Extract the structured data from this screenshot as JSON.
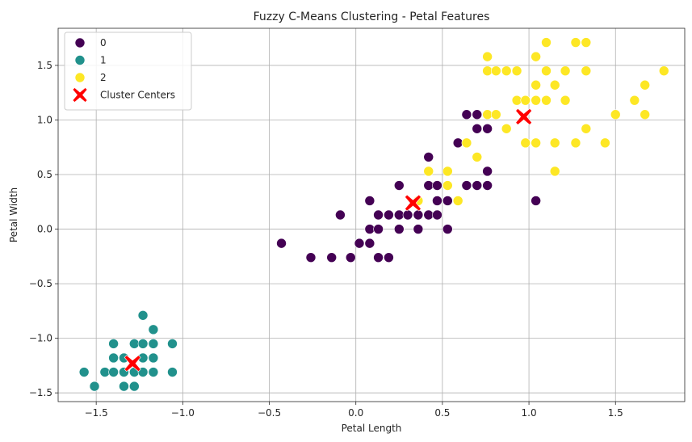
{
  "chart_data": {
    "type": "scatter",
    "title": "Fuzzy C-Means Clustering - Petal Features",
    "xlabel": "Petal Length",
    "ylabel": "Petal Width",
    "xlim": [
      -1.72,
      1.9
    ],
    "ylim": [
      -1.58,
      1.84
    ],
    "xticks": [
      -1.5,
      -1.0,
      -0.5,
      0.0,
      0.5,
      1.0,
      1.5
    ],
    "xtick_labels": [
      "−1.5",
      "−1.0",
      "−0.5",
      "0.0",
      "0.5",
      "1.0",
      "1.5"
    ],
    "yticks": [
      -1.5,
      -1.0,
      -0.5,
      0.0,
      0.5,
      1.0,
      1.5
    ],
    "ytick_labels": [
      "−1.5",
      "−1.0",
      "−0.5",
      "0.0",
      "0.5",
      "1.0",
      "1.5"
    ],
    "grid": true,
    "legend_position": "top-left",
    "series": [
      {
        "name": "0",
        "color": "#440154",
        "points": [
          [
            -0.43,
            -0.13
          ],
          [
            -0.26,
            -0.26
          ],
          [
            -0.14,
            -0.26
          ],
          [
            -0.03,
            -0.26
          ],
          [
            -0.09,
            0.13
          ],
          [
            0.02,
            -0.13
          ],
          [
            0.08,
            -0.13
          ],
          [
            0.13,
            -0.26
          ],
          [
            0.19,
            -0.26
          ],
          [
            0.08,
            0.0
          ],
          [
            0.13,
            0.0
          ],
          [
            0.25,
            0.0
          ],
          [
            0.36,
            0.0
          ],
          [
            0.53,
            0.0
          ],
          [
            0.08,
            0.26
          ],
          [
            0.13,
            0.13
          ],
          [
            0.19,
            0.13
          ],
          [
            0.25,
            0.13
          ],
          [
            0.3,
            0.13
          ],
          [
            0.36,
            0.13
          ],
          [
            0.42,
            0.13
          ],
          [
            0.47,
            0.13
          ],
          [
            0.25,
            0.4
          ],
          [
            0.42,
            0.4
          ],
          [
            0.47,
            0.4
          ],
          [
            0.47,
            0.26
          ],
          [
            0.53,
            0.26
          ],
          [
            0.42,
            0.66
          ],
          [
            0.59,
            0.79
          ],
          [
            0.64,
            0.4
          ],
          [
            0.7,
            0.4
          ],
          [
            0.76,
            0.4
          ],
          [
            0.76,
            0.53
          ],
          [
            0.64,
            1.05
          ],
          [
            0.7,
            1.05
          ],
          [
            0.7,
            0.92
          ],
          [
            0.76,
            0.92
          ],
          [
            1.04,
            0.26
          ]
        ]
      },
      {
        "name": "1",
        "color": "#21918c",
        "points": [
          [
            -1.57,
            -1.31
          ],
          [
            -1.51,
            -1.44
          ],
          [
            -1.45,
            -1.31
          ],
          [
            -1.4,
            -1.31
          ],
          [
            -1.34,
            -1.31
          ],
          [
            -1.4,
            -1.18
          ],
          [
            -1.34,
            -1.18
          ],
          [
            -1.4,
            -1.05
          ],
          [
            -1.28,
            -1.05
          ],
          [
            -1.23,
            -1.05
          ],
          [
            -1.17,
            -1.05
          ],
          [
            -1.06,
            -1.05
          ],
          [
            -1.23,
            -0.79
          ],
          [
            -1.17,
            -0.92
          ],
          [
            -1.23,
            -1.18
          ],
          [
            -1.17,
            -1.18
          ],
          [
            -1.28,
            -1.31
          ],
          [
            -1.23,
            -1.31
          ],
          [
            -1.17,
            -1.31
          ],
          [
            -1.06,
            -1.31
          ],
          [
            -1.34,
            -1.44
          ],
          [
            -1.28,
            -1.44
          ]
        ]
      },
      {
        "name": "2",
        "color": "#fde725",
        "points": [
          [
            0.42,
            0.53
          ],
          [
            0.36,
            0.26
          ],
          [
            0.53,
            0.4
          ],
          [
            0.53,
            0.53
          ],
          [
            0.59,
            0.26
          ],
          [
            0.64,
            0.79
          ],
          [
            0.7,
            0.66
          ],
          [
            0.76,
            1.05
          ],
          [
            0.81,
            1.05
          ],
          [
            0.87,
            0.92
          ],
          [
            0.76,
            1.45
          ],
          [
            0.76,
            1.58
          ],
          [
            0.81,
            1.45
          ],
          [
            0.87,
            1.45
          ],
          [
            0.93,
            1.45
          ],
          [
            0.93,
            1.18
          ],
          [
            0.98,
            1.18
          ],
          [
            0.98,
            0.79
          ],
          [
            1.04,
            0.79
          ],
          [
            1.04,
            1.18
          ],
          [
            1.04,
            1.32
          ],
          [
            1.04,
            1.58
          ],
          [
            1.1,
            1.71
          ],
          [
            1.1,
            1.45
          ],
          [
            1.1,
            1.18
          ],
          [
            1.15,
            1.32
          ],
          [
            1.15,
            0.79
          ],
          [
            1.15,
            0.53
          ],
          [
            1.21,
            1.45
          ],
          [
            1.21,
            1.18
          ],
          [
            1.27,
            0.79
          ],
          [
            1.27,
            1.71
          ],
          [
            1.33,
            1.71
          ],
          [
            1.33,
            1.45
          ],
          [
            1.33,
            0.92
          ],
          [
            1.44,
            0.79
          ],
          [
            1.5,
            1.05
          ],
          [
            1.61,
            1.18
          ],
          [
            1.67,
            1.32
          ],
          [
            1.67,
            1.05
          ],
          [
            1.78,
            1.45
          ]
        ]
      }
    ],
    "centers": {
      "name": "Cluster Centers",
      "color": "#ff0000",
      "points": [
        [
          -1.29,
          -1.23
        ],
        [
          0.33,
          0.24
        ],
        [
          0.97,
          1.03
        ]
      ]
    }
  }
}
